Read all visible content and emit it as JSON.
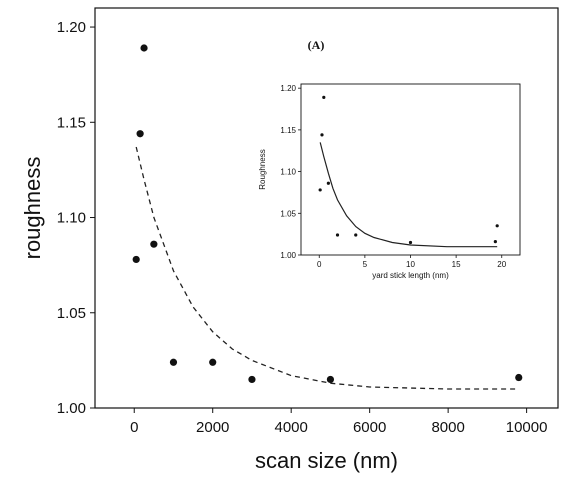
{
  "chart_data": [
    {
      "type": "scatter",
      "panel": "main",
      "xlabel": "scan size (nm)",
      "ylabel": "roughness",
      "xlim": [
        -1000,
        10800
      ],
      "ylim": [
        1.0,
        1.21
      ],
      "xticks": [
        0,
        2000,
        4000,
        6000,
        8000,
        10000
      ],
      "xtick_labels": [
        "0",
        "2000",
        "4000",
        "6000",
        "8000",
        "10000"
      ],
      "yticks": [
        1.0,
        1.05,
        1.1,
        1.15,
        1.2
      ],
      "ytick_labels": [
        "1.00",
        "1.05",
        "1.10",
        "1.15",
        "1.20"
      ],
      "grid": false,
      "points": [
        {
          "x": 50,
          "y": 1.078
        },
        {
          "x": 150,
          "y": 1.144
        },
        {
          "x": 250,
          "y": 1.189
        },
        {
          "x": 500,
          "y": 1.086
        },
        {
          "x": 1000,
          "y": 1.024
        },
        {
          "x": 2000,
          "y": 1.024
        },
        {
          "x": 3000,
          "y": 1.015
        },
        {
          "x": 5000,
          "y": 1.015
        },
        {
          "x": 9800,
          "y": 1.016
        }
      ],
      "fit": {
        "style": "dashed",
        "x": [
          50,
          250,
          500,
          750,
          1000,
          1500,
          2000,
          2500,
          3000,
          4000,
          5000,
          6000,
          8000,
          9800
        ],
        "y": [
          1.137,
          1.12,
          1.1,
          1.086,
          1.072,
          1.053,
          1.04,
          1.031,
          1.025,
          1.017,
          1.013,
          1.011,
          1.01,
          1.01
        ]
      }
    },
    {
      "type": "scatter",
      "panel": "inset",
      "label": "(A)",
      "xlabel": "yard stick length (nm)",
      "ylabel": "Roughness",
      "xlim": [
        -2,
        22
      ],
      "ylim": [
        1.0,
        1.205
      ],
      "xticks": [
        0,
        5,
        10,
        15,
        20
      ],
      "xtick_labels": [
        "0",
        "5",
        "10",
        "15",
        "20"
      ],
      "yticks": [
        1.0,
        1.05,
        1.1,
        1.15,
        1.2
      ],
      "ytick_labels": [
        "1.00",
        "1.05",
        "1.10",
        "1.15",
        "1.20"
      ],
      "grid": false,
      "points": [
        {
          "x": 0.1,
          "y": 1.078
        },
        {
          "x": 0.3,
          "y": 1.144
        },
        {
          "x": 0.5,
          "y": 1.189
        },
        {
          "x": 1.0,
          "y": 1.086
        },
        {
          "x": 2.0,
          "y": 1.024
        },
        {
          "x": 4.0,
          "y": 1.024
        },
        {
          "x": 10.0,
          "y": 1.015
        },
        {
          "x": 19.3,
          "y": 1.016
        },
        {
          "x": 19.5,
          "y": 1.035
        }
      ],
      "fit": {
        "style": "solid",
        "x": [
          0.1,
          0.5,
          1,
          1.5,
          2,
          3,
          4,
          5,
          6,
          8,
          10,
          14,
          19.5
        ],
        "y": [
          1.135,
          1.118,
          1.098,
          1.08,
          1.066,
          1.047,
          1.034,
          1.026,
          1.021,
          1.015,
          1.012,
          1.01,
          1.01
        ]
      }
    }
  ]
}
